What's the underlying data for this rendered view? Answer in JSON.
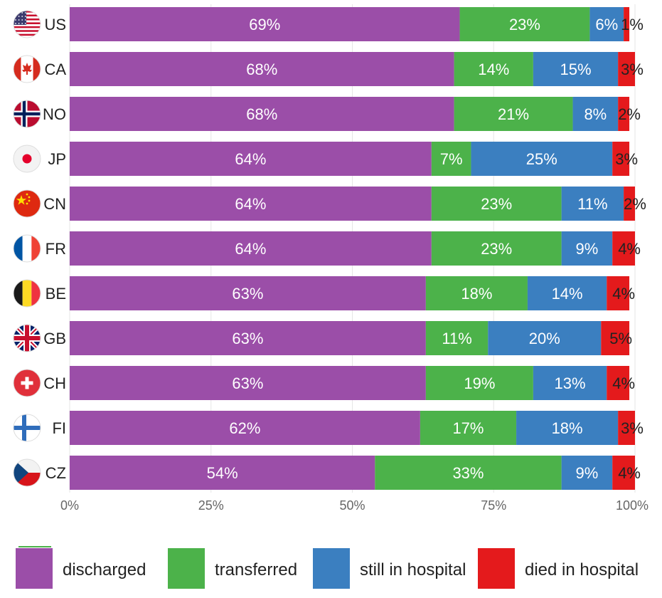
{
  "chart_data": {
    "type": "bar",
    "orientation": "horizontal",
    "stacked": true,
    "normalized": true,
    "categories": [
      "US",
      "CA",
      "NO",
      "JP",
      "CN",
      "FR",
      "BE",
      "GB",
      "CH",
      "FI",
      "CZ"
    ],
    "series": [
      {
        "name": "discharged",
        "color": "#9b4ea8",
        "values": [
          69,
          68,
          68,
          64,
          64,
          64,
          63,
          63,
          63,
          62,
          54
        ]
      },
      {
        "name": "transferred",
        "color": "#4cb24a",
        "values": [
          23,
          14,
          21,
          7,
          23,
          23,
          18,
          11,
          19,
          17,
          33
        ]
      },
      {
        "name": "still in hospital",
        "color": "#3b7fc0",
        "values": [
          6,
          15,
          8,
          25,
          11,
          9,
          14,
          20,
          13,
          18,
          9
        ]
      },
      {
        "name": "died in hospital",
        "color": "#e41a1c",
        "values": [
          1,
          3,
          2,
          3,
          2,
          4,
          4,
          5,
          4,
          3,
          4
        ]
      }
    ],
    "value_suffix": "%",
    "xticks": [
      "0%",
      "25%",
      "50%",
      "75%",
      "100%"
    ],
    "xlim": [
      0,
      100
    ],
    "legend": "bottom",
    "flags": [
      "us-flag-icon",
      "ca-flag-icon",
      "no-flag-icon",
      "jp-flag-icon",
      "cn-flag-icon",
      "fr-flag-icon",
      "be-flag-icon",
      "gb-flag-icon",
      "ch-flag-icon",
      "fi-flag-icon",
      "cz-flag-icon"
    ]
  }
}
